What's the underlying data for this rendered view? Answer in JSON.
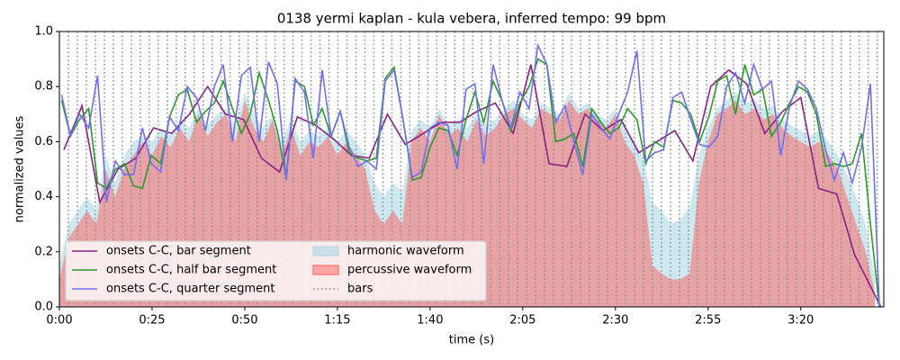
{
  "chart_data": {
    "type": "line",
    "title": "0138 yermi kaplan - kula vebera, inferred tempo: 99 bpm",
    "x_label": "time (s)",
    "y_label": "normalized values",
    "xlim": [
      0,
      222.4
    ],
    "ylim": [
      0,
      1
    ],
    "xticks": [
      {
        "value": 0,
        "label": "0:00"
      },
      {
        "value": 25,
        "label": "0:25"
      },
      {
        "value": 50,
        "label": "0:50"
      },
      {
        "value": 75,
        "label": "1:15"
      },
      {
        "value": 100,
        "label": "1:40"
      },
      {
        "value": 125,
        "label": "2:05"
      },
      {
        "value": 150,
        "label": "2:30"
      },
      {
        "value": 175,
        "label": "2:55"
      },
      {
        "value": 200,
        "label": "3:20"
      }
    ],
    "yticks": [
      {
        "value": 0,
        "label": "0.0"
      },
      {
        "value": 0.2,
        "label": "0.2"
      },
      {
        "value": 0.4,
        "label": "0.4"
      },
      {
        "value": 0.6,
        "label": "0.6"
      },
      {
        "value": 0.8,
        "label": "0.8"
      },
      {
        "value": 1,
        "label": "1.0"
      }
    ],
    "legend": "lower left",
    "series": [
      {
        "name": "onsets C-C, bar segment",
        "kind": "line",
        "color": "#882288",
        "x": [
          1.2,
          6.1,
          10.9,
          15.8,
          20.6,
          25.4,
          30.3,
          35.1,
          40.0,
          44.8,
          49.7,
          54.5,
          59.4,
          64.2,
          69.1,
          73.9,
          78.8,
          83.6,
          88.5,
          93.3,
          98.2,
          103.0,
          107.9,
          112.7,
          117.6,
          122.4,
          127.2,
          132.1,
          136.9,
          141.8,
          146.6,
          151.5,
          156.3,
          161.2,
          166.0,
          170.9,
          175.7,
          180.6,
          185.4,
          190.3,
          195.1,
          200.0,
          204.8,
          209.7,
          214.5,
          221.6
        ],
        "values": [
          0.57,
          0.73,
          0.38,
          0.5,
          0.54,
          0.65,
          0.63,
          0.7,
          0.8,
          0.7,
          0.68,
          0.54,
          0.49,
          0.69,
          0.66,
          0.61,
          0.55,
          0.54,
          0.7,
          0.59,
          0.63,
          0.67,
          0.67,
          0.71,
          0.74,
          0.63,
          0.88,
          0.52,
          0.51,
          0.7,
          0.64,
          0.68,
          0.56,
          0.6,
          0.64,
          0.53,
          0.8,
          0.86,
          0.81,
          0.63,
          0.71,
          0.76,
          0.43,
          0.41,
          0.19,
          0.0
        ]
      },
      {
        "name": "onsets C-C, half bar segment",
        "kind": "line",
        "color": "#2a9a2a",
        "x": [
          0.6,
          3.0,
          5.4,
          7.9,
          10.3,
          12.7,
          15.1,
          17.6,
          20.0,
          22.4,
          24.8,
          27.3,
          29.7,
          32.1,
          34.5,
          37.0,
          39.4,
          41.8,
          44.2,
          46.7,
          49.1,
          51.5,
          53.9,
          56.4,
          58.8,
          61.2,
          63.6,
          66.1,
          68.5,
          70.9,
          73.3,
          75.8,
          78.2,
          80.6,
          83.0,
          85.5,
          87.9,
          90.3,
          92.7,
          95.2,
          97.6,
          100.0,
          102.4,
          104.8,
          107.3,
          109.7,
          112.1,
          114.5,
          117.0,
          119.4,
          121.8,
          124.2,
          126.7,
          129.1,
          131.5,
          133.9,
          136.4,
          138.8,
          141.2,
          143.6,
          146.1,
          148.5,
          150.9,
          153.3,
          155.8,
          158.2,
          160.6,
          163.0,
          165.5,
          167.9,
          170.3,
          172.7,
          175.2,
          177.6,
          180.0,
          182.4,
          184.9,
          187.3,
          189.7,
          192.1,
          194.6,
          197.0,
          199.4,
          201.8,
          204.2,
          206.7,
          209.1,
          211.5,
          213.9,
          216.4,
          218.8,
          221.2
        ],
        "values": [
          0.75,
          0.62,
          0.68,
          0.72,
          0.45,
          0.43,
          0.5,
          0.52,
          0.44,
          0.43,
          0.55,
          0.52,
          0.69,
          0.77,
          0.79,
          0.67,
          0.71,
          0.74,
          0.82,
          0.72,
          0.63,
          0.7,
          0.85,
          0.75,
          0.64,
          0.47,
          0.82,
          0.8,
          0.66,
          0.72,
          0.62,
          0.71,
          0.56,
          0.54,
          0.53,
          0.54,
          0.83,
          0.87,
          0.68,
          0.46,
          0.47,
          0.58,
          0.65,
          0.64,
          0.55,
          0.68,
          0.78,
          0.67,
          0.82,
          0.75,
          0.64,
          0.74,
          0.8,
          0.9,
          0.88,
          0.6,
          0.61,
          0.63,
          0.51,
          0.72,
          0.67,
          0.63,
          0.65,
          0.72,
          0.68,
          0.52,
          0.6,
          0.58,
          0.75,
          0.74,
          0.7,
          0.6,
          0.69,
          0.82,
          0.84,
          0.7,
          0.88,
          0.77,
          0.79,
          0.62,
          0.67,
          0.74,
          0.8,
          0.78,
          0.7,
          0.51,
          0.52,
          0.51,
          0.52,
          0.63,
          0.3,
          0.0
        ]
      },
      {
        "name": "onsets C-C, quarter segment",
        "kind": "line",
        "color": "#6f6ff2",
        "x": [
          0.6,
          3.0,
          5.4,
          7.9,
          10.3,
          12.7,
          15.1,
          17.6,
          20.0,
          22.4,
          24.8,
          27.3,
          29.7,
          32.1,
          34.5,
          37.0,
          39.4,
          41.8,
          44.2,
          46.7,
          49.1,
          51.5,
          53.9,
          56.4,
          58.8,
          61.2,
          63.6,
          66.1,
          68.5,
          70.9,
          73.3,
          75.8,
          78.2,
          80.6,
          83.0,
          85.5,
          87.9,
          90.3,
          92.7,
          95.2,
          97.6,
          100.0,
          102.4,
          104.8,
          107.3,
          109.7,
          112.1,
          114.5,
          117.0,
          119.4,
          121.8,
          124.2,
          126.7,
          129.1,
          131.5,
          133.9,
          136.4,
          138.8,
          141.2,
          143.6,
          146.1,
          148.5,
          150.9,
          153.3,
          155.8,
          158.2,
          160.6,
          163.0,
          165.5,
          167.9,
          170.3,
          172.7,
          175.2,
          177.6,
          180.0,
          182.4,
          184.9,
          187.3,
          189.7,
          192.1,
          194.6,
          197.0,
          199.4,
          201.8,
          204.2,
          206.7,
          209.1,
          211.5,
          213.9,
          216.4,
          218.8,
          221.2
        ],
        "values": [
          0.77,
          0.62,
          0.7,
          0.65,
          0.84,
          0.38,
          0.53,
          0.48,
          0.48,
          0.65,
          0.52,
          0.49,
          0.69,
          0.64,
          0.8,
          0.76,
          0.64,
          0.8,
          0.88,
          0.6,
          0.84,
          0.87,
          0.6,
          0.89,
          0.81,
          0.46,
          0.83,
          0.78,
          0.54,
          0.86,
          0.62,
          0.71,
          0.58,
          0.51,
          0.53,
          0.5,
          0.82,
          0.86,
          0.68,
          0.47,
          0.49,
          0.65,
          0.67,
          0.66,
          0.5,
          0.79,
          0.81,
          0.52,
          0.88,
          0.75,
          0.65,
          0.78,
          0.72,
          0.95,
          0.88,
          0.67,
          0.73,
          0.6,
          0.48,
          0.7,
          0.65,
          0.61,
          0.7,
          0.78,
          0.93,
          0.53,
          0.56,
          0.57,
          0.76,
          0.78,
          0.68,
          0.59,
          0.58,
          0.62,
          0.8,
          0.85,
          0.74,
          0.88,
          0.79,
          0.82,
          0.55,
          0.73,
          0.82,
          0.79,
          0.72,
          0.57,
          0.46,
          0.56,
          0.45,
          0.58,
          0.81,
          0.0
        ]
      },
      {
        "name": "harmonic waveform",
        "kind": "area",
        "color": "#add8e6",
        "alpha": 0.6,
        "x": [
          0,
          2.5,
          5,
          7.5,
          10,
          12.5,
          15,
          17.5,
          20,
          22.5,
          25,
          27.5,
          30,
          32.5,
          35,
          37.5,
          40,
          42.5,
          45,
          47.5,
          50,
          52.5,
          55,
          57.5,
          60,
          62.5,
          65,
          67.5,
          70,
          72.5,
          75,
          77.5,
          80,
          82.5,
          85,
          87.5,
          90,
          92.5,
          95,
          97.5,
          100,
          102.5,
          105,
          107.5,
          110,
          112.5,
          115,
          117.5,
          120,
          122.5,
          125,
          127.5,
          130,
          132.5,
          135,
          137.5,
          140,
          142.5,
          145,
          147.5,
          150,
          152.5,
          155,
          157.5,
          160,
          162.5,
          165,
          167.5,
          170,
          172.5,
          175,
          177.5,
          180,
          182.5,
          185,
          187.5,
          190,
          192.5,
          195,
          197.5,
          200,
          202.5,
          205,
          207.5,
          210,
          212.5,
          215,
          217.5,
          220
        ],
        "values": [
          0.15,
          0.3,
          0.35,
          0.4,
          0.35,
          0.55,
          0.45,
          0.55,
          0.6,
          0.62,
          0.6,
          0.65,
          0.62,
          0.68,
          0.65,
          0.72,
          0.66,
          0.7,
          0.72,
          0.65,
          0.78,
          0.7,
          0.65,
          0.7,
          0.6,
          0.68,
          0.6,
          0.64,
          0.62,
          0.65,
          0.6,
          0.64,
          0.6,
          0.55,
          0.45,
          0.4,
          0.45,
          0.42,
          0.64,
          0.68,
          0.65,
          0.72,
          0.66,
          0.68,
          0.65,
          0.7,
          0.66,
          0.68,
          0.72,
          0.75,
          0.7,
          0.68,
          0.74,
          0.72,
          0.7,
          0.78,
          0.72,
          0.74,
          0.7,
          0.68,
          0.72,
          0.65,
          0.6,
          0.55,
          0.38,
          0.35,
          0.3,
          0.32,
          0.36,
          0.55,
          0.65,
          0.72,
          0.75,
          0.78,
          0.74,
          0.75,
          0.72,
          0.73,
          0.68,
          0.66,
          0.64,
          0.62,
          0.64,
          0.6,
          0.55,
          0.48,
          0.4,
          0.3,
          0.1
        ]
      },
      {
        "name": "percussive waveform",
        "kind": "area",
        "color": "#ff5c5c",
        "alpha": 0.5,
        "x": [
          0,
          2.5,
          5,
          7.5,
          10,
          12.5,
          15,
          17.5,
          20,
          22.5,
          25,
          27.5,
          30,
          32.5,
          35,
          37.5,
          40,
          42.5,
          45,
          47.5,
          50,
          52.5,
          55,
          57.5,
          60,
          62.5,
          65,
          67.5,
          70,
          72.5,
          75,
          77.5,
          80,
          82.5,
          85,
          87.5,
          90,
          92.5,
          95,
          97.5,
          100,
          102.5,
          105,
          107.5,
          110,
          112.5,
          115,
          117.5,
          120,
          122.5,
          125,
          127.5,
          130,
          132.5,
          135,
          137.5,
          140,
          142.5,
          145,
          147.5,
          150,
          152.5,
          155,
          157.5,
          160,
          162.5,
          165,
          167.5,
          170,
          172.5,
          175,
          177.5,
          180,
          182.5,
          185,
          187.5,
          190,
          192.5,
          195,
          197.5,
          200,
          202.5,
          205,
          207.5,
          210,
          212.5,
          215,
          217.5,
          220
        ],
        "values": [
          0.1,
          0.25,
          0.3,
          0.35,
          0.3,
          0.5,
          0.4,
          0.5,
          0.55,
          0.6,
          0.55,
          0.62,
          0.58,
          0.65,
          0.6,
          0.7,
          0.62,
          0.67,
          0.7,
          0.6,
          0.75,
          0.65,
          0.6,
          0.68,
          0.55,
          0.65,
          0.55,
          0.6,
          0.58,
          0.62,
          0.55,
          0.6,
          0.55,
          0.5,
          0.35,
          0.3,
          0.35,
          0.3,
          0.6,
          0.65,
          0.6,
          0.7,
          0.62,
          0.65,
          0.6,
          0.68,
          0.62,
          0.65,
          0.7,
          0.72,
          0.68,
          0.65,
          0.72,
          0.7,
          0.68,
          0.75,
          0.7,
          0.72,
          0.68,
          0.65,
          0.7,
          0.6,
          0.55,
          0.45,
          0.15,
          0.12,
          0.1,
          0.1,
          0.12,
          0.45,
          0.6,
          0.7,
          0.72,
          0.75,
          0.7,
          0.72,
          0.68,
          0.7,
          0.65,
          0.62,
          0.6,
          0.58,
          0.6,
          0.55,
          0.5,
          0.4,
          0.3,
          0.2,
          0.05
        ]
      },
      {
        "name": "bars",
        "kind": "vline",
        "color": "#888888",
        "x": [
          0,
          2.42,
          4.85,
          7.27,
          9.7,
          12.12,
          14.55,
          16.97,
          19.39,
          21.82,
          24.24,
          26.67,
          29.09,
          31.52,
          33.94,
          36.36,
          38.79,
          41.21,
          43.64,
          46.06,
          48.48,
          50.91,
          53.33,
          55.76,
          58.18,
          60.61,
          63.03,
          65.45,
          67.88,
          70.3,
          72.73,
          75.15,
          77.58,
          80.0,
          82.42,
          84.85,
          87.27,
          89.7,
          92.12,
          94.55,
          96.97,
          99.39,
          101.82,
          104.24,
          106.67,
          109.09,
          111.52,
          113.94,
          116.36,
          118.79,
          121.21,
          123.64,
          126.06,
          128.48,
          130.91,
          133.33,
          135.76,
          138.18,
          140.61,
          143.03,
          145.45,
          147.88,
          150.3,
          152.73,
          155.15,
          157.58,
          160.0,
          162.42,
          164.85,
          167.27,
          169.7,
          172.12,
          174.55,
          176.97,
          179.39,
          181.82,
          184.24,
          186.67,
          189.09,
          191.52,
          193.94,
          196.36,
          198.79,
          201.21,
          203.64,
          206.06,
          208.48,
          210.91,
          213.33,
          215.76,
          218.18,
          220.61
        ]
      }
    ]
  }
}
